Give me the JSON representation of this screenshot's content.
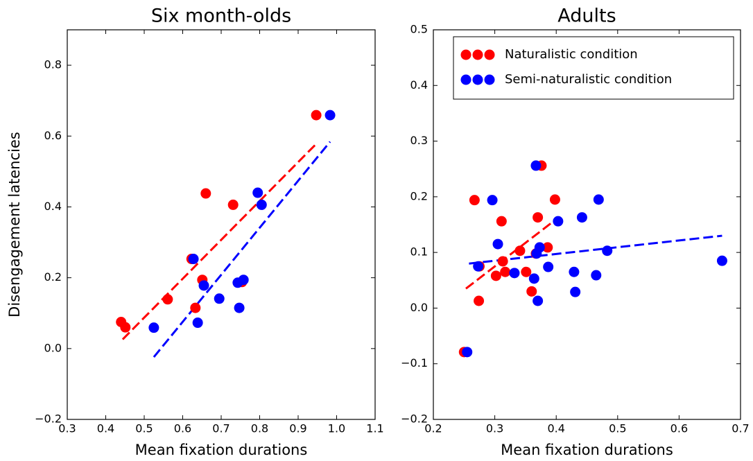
{
  "chart_data": [
    {
      "type": "scatter",
      "title": "Six month-olds",
      "xlabel": "Mean fixation durations",
      "ylabel": "Disengagement latencies",
      "xlim": [
        0.3,
        1.1
      ],
      "ylim": [
        -0.2,
        0.9
      ],
      "xticks": [
        0.3,
        0.4,
        0.5,
        0.6,
        0.7,
        0.8,
        0.9,
        {
          "value": 1,
          "label": "1.0"
        },
        1.1
      ],
      "yticks": [
        {
          "value": -0.2,
          "label": "−0.2"
        },
        {
          "value": 0,
          "label": "0.0"
        },
        0.2,
        0.4,
        0.6,
        0.8
      ],
      "series": [
        {
          "color": "#ff0000",
          "x": [
            0.44,
            0.451,
            0.561,
            0.623,
            0.651,
            0.633,
            0.66,
            0.731,
            0.754,
            0.947
          ],
          "values": [
            0.075,
            0.06,
            0.139,
            0.253,
            0.194,
            0.115,
            0.438,
            0.406,
            0.188,
            0.659
          ],
          "fit": {
            "x": [
              0.444,
              0.947
            ],
            "values": [
              0.026,
              0.578
            ]
          }
        },
        {
          "color": "#0000ff",
          "x": [
            0.525,
            0.628,
            0.639,
            0.655,
            0.695,
            0.743,
            0.758,
            0.747,
            0.795,
            0.805,
            0.983
          ],
          "values": [
            0.059,
            0.253,
            0.073,
            0.178,
            0.141,
            0.186,
            0.194,
            0.115,
            0.44,
            0.406,
            0.659
          ],
          "fit": {
            "x": [
              0.525,
              0.983
            ],
            "values": [
              -0.024,
              0.584
            ]
          }
        }
      ]
    },
    {
      "type": "scatter",
      "title": "Adults",
      "xlabel": "Mean fixation durations",
      "legend": "upper right",
      "xlim": [
        0.2,
        0.7
      ],
      "ylim": [
        -0.2,
        0.5
      ],
      "xticks": [
        0.2,
        0.3,
        0.4,
        0.5,
        0.6,
        0.7
      ],
      "yticks": [
        {
          "value": -0.2,
          "label": "−0.2"
        },
        {
          "value": -0.1,
          "label": "−0.1"
        },
        {
          "value": 0,
          "label": "0.0"
        },
        0.1,
        0.2,
        0.3,
        0.4,
        0.5
      ],
      "series": [
        {
          "name": "Naturalistic condition",
          "color": "#ff0000",
          "x": [
            0.25,
            0.267,
            0.274,
            0.275,
            0.302,
            0.311,
            0.313,
            0.317,
            0.341,
            0.351,
            0.36,
            0.367,
            0.37,
            0.376,
            0.386,
            0.398
          ],
          "values": [
            -0.079,
            0.194,
            0.013,
            0.075,
            0.058,
            0.156,
            0.084,
            0.065,
            0.103,
            0.065,
            0.03,
            0.098,
            0.163,
            0.256,
            0.109,
            0.195
          ],
          "fit": {
            "x": [
              0.253,
              0.398
            ],
            "values": [
              0.035,
              0.158
            ]
          }
        },
        {
          "name": "Semi-naturalistic condition",
          "color": "#0000ff",
          "x": [
            0.255,
            0.273,
            0.296,
            0.305,
            0.332,
            0.364,
            0.367,
            0.368,
            0.37,
            0.373,
            0.387,
            0.403,
            0.429,
            0.431,
            0.442,
            0.465,
            0.469,
            0.483,
            0.67
          ],
          "values": [
            -0.079,
            0.075,
            0.194,
            0.115,
            0.063,
            0.053,
            0.256,
            0.098,
            0.013,
            0.109,
            0.074,
            0.156,
            0.065,
            0.029,
            0.163,
            0.059,
            0.195,
            0.103,
            0.085
          ],
          "fit": {
            "x": [
              0.258,
              0.67
            ],
            "values": [
              0.08,
              0.13
            ]
          }
        }
      ]
    }
  ]
}
